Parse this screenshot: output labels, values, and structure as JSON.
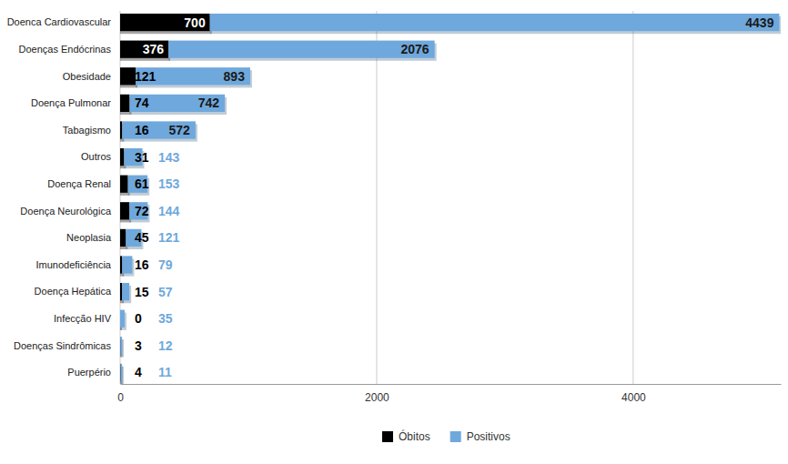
{
  "chart_data": {
    "type": "bar",
    "orientation": "horizontal",
    "stacked": true,
    "data_labels": true,
    "grid": true,
    "legend": "bottom",
    "categories": [
      "Doenca Cardiovascular",
      "Doenças Endócrinas",
      "Obesidade",
      "Doença Pulmonar",
      "Tabagismo",
      "Outros",
      "Doença Renal",
      "Doença Neurológica",
      "Neoplasia",
      "Imunodeficiência",
      "Doença Hepática",
      "Infecção HIV",
      "Doenças Sindrômicas",
      "Puerpério"
    ],
    "series": [
      {
        "name": "Óbitos",
        "color": "#000000",
        "values": [
          700,
          376,
          121,
          74,
          16,
          31,
          61,
          72,
          45,
          16,
          15,
          0,
          3,
          4
        ]
      },
      {
        "name": "Positivos",
        "color": "#6fa8dc",
        "values": [
          4439,
          2076,
          893,
          742,
          572,
          143,
          153,
          144,
          121,
          79,
          57,
          35,
          12,
          11
        ]
      }
    ],
    "xlim": [
      0,
      5150
    ],
    "xticks": [
      0,
      2000,
      4000
    ]
  }
}
